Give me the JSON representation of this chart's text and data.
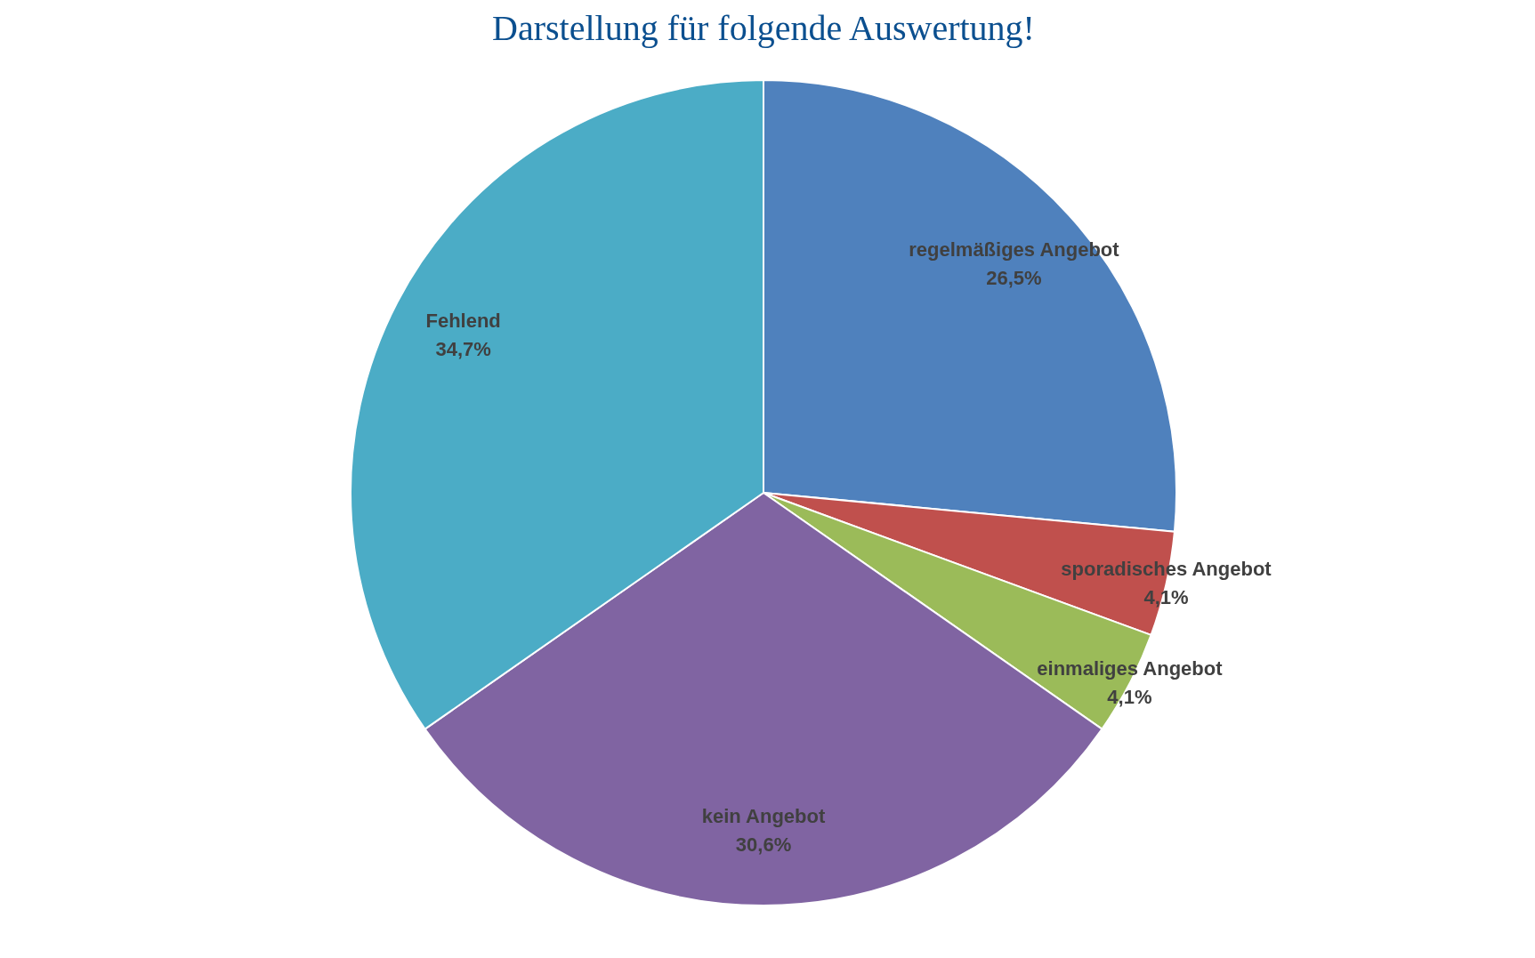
{
  "chart_data": {
    "type": "pie",
    "categories": [
      "regelmäßiges Angebot",
      "sporadisches Angebot",
      "einmaliges Angebot",
      "kein Angebot",
      "Fehlend"
    ],
    "values": [
      26.5,
      4.1,
      4.1,
      30.6,
      34.7
    ],
    "value_labels": [
      "26,5%",
      "4,1%",
      "4,1%",
      "30,6%",
      "34,7%"
    ],
    "colors": [
      "#4f81bd",
      "#c0504d",
      "#9bbb59",
      "#8064a2",
      "#4bacc6"
    ],
    "legend": false,
    "annotations": [
      "Darstellung für folgende Auswertung!"
    ]
  }
}
